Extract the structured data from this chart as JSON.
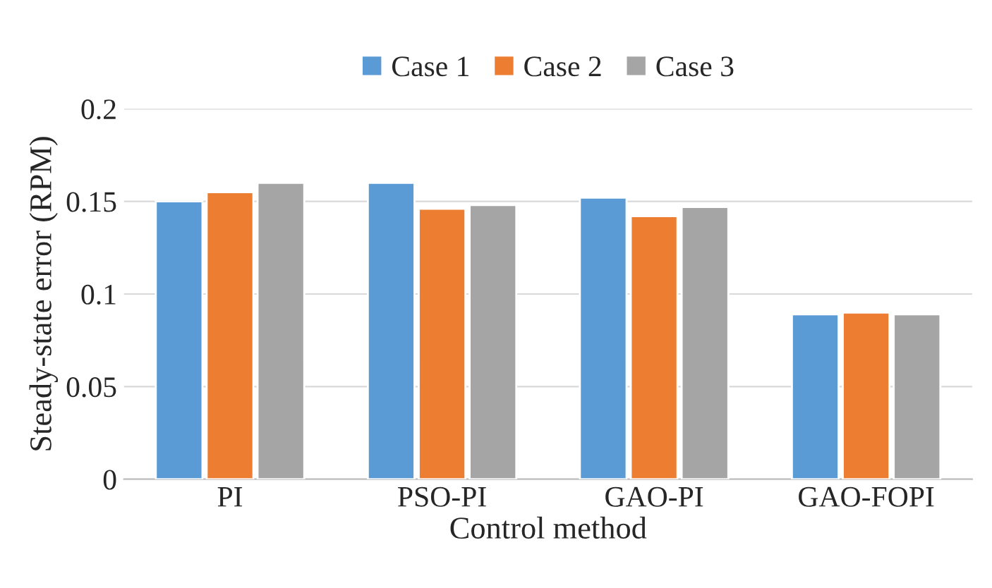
{
  "chart_data": {
    "type": "bar",
    "xlabel": "Control method",
    "ylabel": "Steady-state error (RPM)",
    "categories": [
      "PI",
      "PSO-PI",
      "GAO-PI",
      "GAO-FOPI"
    ],
    "series": [
      {
        "name": "Case 1",
        "color": "#5b9bd5",
        "values": [
          0.15,
          0.16,
          0.152,
          0.089
        ]
      },
      {
        "name": "Case 2",
        "color": "#ed7d31",
        "values": [
          0.155,
          0.146,
          0.142,
          0.09
        ]
      },
      {
        "name": "Case 3",
        "color": "#a5a5a5",
        "values": [
          0.16,
          0.148,
          0.147,
          0.089
        ]
      }
    ],
    "ylim": [
      0,
      0.2
    ],
    "yticks": [
      0,
      0.05,
      0.1,
      0.15,
      0.2
    ],
    "grid": "y",
    "legend": "top"
  }
}
